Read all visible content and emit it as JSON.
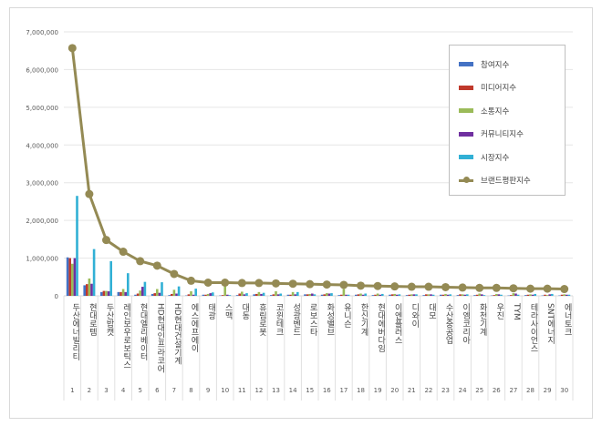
{
  "chart_data": {
    "type": "bar",
    "title": "",
    "xlabel": "",
    "ylabel": "",
    "ylim": [
      0,
      7000000
    ],
    "yticks": [
      "0",
      "1,000,000",
      "2,000,000",
      "3,000,000",
      "4,000,000",
      "5,000,000",
      "6,000,000",
      "7,000,000"
    ],
    "grid": true,
    "legend_position": "top-right",
    "ranks": [
      "1",
      "2",
      "3",
      "4",
      "5",
      "6",
      "7",
      "8",
      "9",
      "10",
      "11",
      "12",
      "13",
      "14",
      "15",
      "16",
      "17",
      "18",
      "19",
      "20",
      "21",
      "22",
      "23",
      "24",
      "25",
      "26",
      "27",
      "28",
      "29",
      "30"
    ],
    "categories": [
      "두산에너빌리티",
      "현대로템",
      "두산밥캣",
      "레인보우로보틱스",
      "현대엘리베이터",
      "HD현대인프라코어",
      "HD현대건설기계",
      "에스에프에이",
      "태광",
      "스맥",
      "대동",
      "휴림로봇",
      "코윈테크",
      "성광벤드",
      "로보스타",
      "화성밸브",
      "유니슨",
      "한신기계",
      "현대에버다임",
      "이엔플러스",
      "디와이",
      "대모",
      "수산중공업",
      "이엠코리아",
      "화천기계",
      "우진",
      "TYM",
      "테라사이언스",
      "SNT에너지",
      "에너토크"
    ],
    "series": [
      {
        "name": "참여지수",
        "color": "#4472c4",
        "values": [
          1020000,
          280000,
          100000,
          100000,
          30000,
          50000,
          20000,
          10000,
          30000,
          10000,
          20000,
          40000,
          20000,
          30000,
          40000,
          30000,
          20000,
          30000,
          20000,
          30000,
          20000,
          20000,
          30000,
          20000,
          20000,
          10000,
          10000,
          20000,
          10000,
          10000
        ]
      },
      {
        "name": "미디어지수",
        "color": "#c0392b",
        "values": [
          1000000,
          310000,
          130000,
          100000,
          60000,
          70000,
          50000,
          40000,
          30000,
          20000,
          60000,
          50000,
          40000,
          30000,
          40000,
          40000,
          30000,
          40000,
          30000,
          40000,
          30000,
          40000,
          30000,
          40000,
          30000,
          20000,
          20000,
          30000,
          30000,
          30000
        ]
      },
      {
        "name": "소통지수",
        "color": "#9bbb59",
        "values": [
          850000,
          460000,
          130000,
          180000,
          140000,
          180000,
          160000,
          120000,
          50000,
          250000,
          110000,
          100000,
          120000,
          100000,
          50000,
          70000,
          180000,
          60000,
          60000,
          50000,
          40000,
          40000,
          50000,
          40000,
          60000,
          50000,
          70000,
          40000,
          20000,
          40000
        ]
      },
      {
        "name": "커뮤니티지수",
        "color": "#7030a0",
        "values": [
          1000000,
          320000,
          120000,
          100000,
          240000,
          80000,
          60000,
          30000,
          70000,
          30000,
          40000,
          50000,
          40000,
          40000,
          60000,
          60000,
          30000,
          30000,
          30000,
          30000,
          40000,
          40000,
          30000,
          30000,
          40000,
          40000,
          60000,
          30000,
          40000,
          30000
        ]
      },
      {
        "name": "시장지수",
        "color": "#31b0d5",
        "values": [
          2650000,
          1240000,
          920000,
          600000,
          370000,
          360000,
          250000,
          190000,
          90000,
          20000,
          70000,
          80000,
          60000,
          100000,
          40000,
          70000,
          30000,
          60000,
          50000,
          40000,
          40000,
          30000,
          40000,
          40000,
          20000,
          30000,
          30000,
          50000,
          50000,
          30000
        ]
      }
    ],
    "line": {
      "name": "브랜드평판지수",
      "color": "#948a54",
      "values": [
        6570000,
        2700000,
        1480000,
        1170000,
        920000,
        800000,
        580000,
        400000,
        350000,
        350000,
        340000,
        340000,
        330000,
        320000,
        310000,
        300000,
        290000,
        270000,
        260000,
        250000,
        240000,
        240000,
        230000,
        220000,
        210000,
        210000,
        200000,
        190000,
        190000,
        180000
      ]
    }
  }
}
